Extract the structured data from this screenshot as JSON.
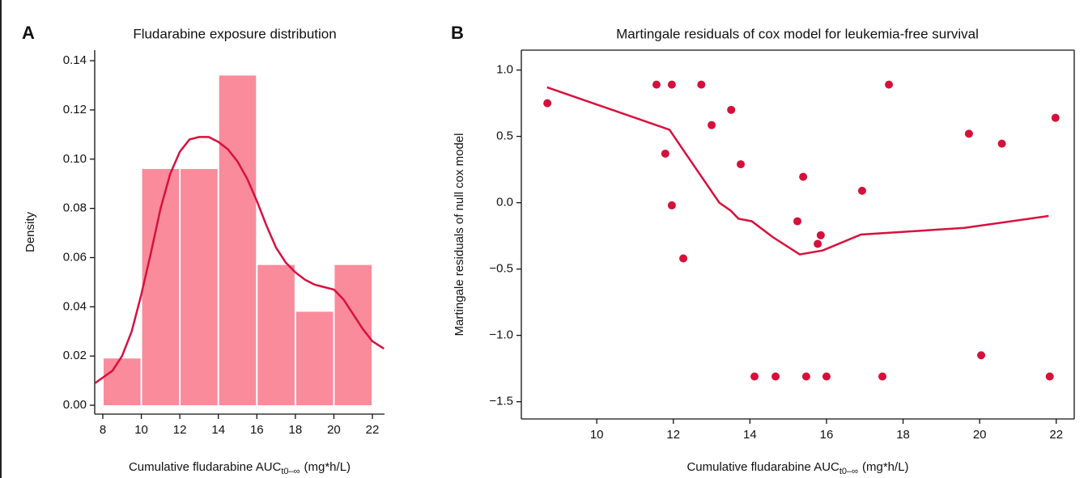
{
  "chart_data": [
    {
      "type": "histogram",
      "panel_label": "A",
      "title": "Fludarabine exposure distribution",
      "x_label": "Cumulative fludarabine AUC",
      "x_label_sub": "t0–∞",
      "x_label_unit": "(mg*h/L)",
      "y_label": "Density",
      "bins": [
        8,
        10,
        12,
        14,
        16,
        18,
        20,
        22
      ],
      "values": [
        0.019,
        0.096,
        0.096,
        0.134,
        0.057,
        0.038,
        0.057
      ],
      "color": "#f98b9b",
      "line_color": "#d8103e",
      "box": false,
      "curve_x": [
        7.6,
        8.5,
        9,
        9.5,
        10,
        10.5,
        11,
        11.5,
        12,
        12.5,
        13,
        13.5,
        14,
        14.5,
        15,
        15.5,
        16,
        16.5,
        17,
        17.5,
        18,
        18.5,
        19,
        19.5,
        20,
        20.5,
        21,
        21.5,
        22,
        22.6
      ],
      "curve_y": [
        0.009,
        0.014,
        0.02,
        0.03,
        0.045,
        0.062,
        0.08,
        0.094,
        0.103,
        0.108,
        0.109,
        0.109,
        0.107,
        0.104,
        0.099,
        0.092,
        0.083,
        0.073,
        0.064,
        0.058,
        0.054,
        0.051,
        0.049,
        0.048,
        0.047,
        0.043,
        0.037,
        0.031,
        0.026,
        0.023
      ],
      "xlim": [
        7.58,
        22.63
      ],
      "ylim": [
        -0.0036,
        0.1443
      ],
      "xticks": [
        8,
        10,
        12,
        14,
        16,
        18,
        20,
        22
      ],
      "yticks": [
        {
          "value": 0,
          "label": "0.00"
        },
        0.02,
        0.04,
        0.06,
        0.08,
        {
          "value": 0.1,
          "label": "0.10"
        },
        0.12,
        0.14
      ]
    },
    {
      "type": "scatter",
      "panel_label": "B",
      "title": "Martingale residuals of cox model for leukemia-free survival",
      "x_label": "Cumulative fludarabine AUC",
      "x_label_sub": "t0–∞",
      "x_label_unit": "(mg*h/L)",
      "y_label": "Martingale residuals of null cox model",
      "x": [
        8.71,
        11.56,
        11.96,
        11.79,
        11.96,
        12.26,
        12.73,
        13.0,
        13.51,
        13.76,
        14.12,
        14.67,
        15.24,
        15.39,
        15.47,
        15.77,
        15.85,
        16.0,
        16.93,
        17.46,
        17.63,
        19.72,
        20.04,
        20.58,
        21.83,
        21.98
      ],
      "values": [
        0.75,
        0.89,
        0.89,
        0.37,
        -0.02,
        -0.42,
        0.89,
        0.585,
        0.7,
        0.29,
        -1.31,
        -1.31,
        -0.14,
        0.195,
        -1.31,
        -0.31,
        -0.245,
        -1.31,
        0.09,
        -1.31,
        0.89,
        0.52,
        -1.15,
        0.445,
        -1.31,
        0.64
      ],
      "color": "#d5113b",
      "line_color": "#d8103e",
      "box": true,
      "curve_x": [
        8.7,
        11.9,
        12.3,
        13.2,
        13.5,
        13.7,
        14.05,
        14.6,
        15.3,
        15.9,
        16.9,
        19.6,
        21.8
      ],
      "curve_y": [
        0.87,
        0.55,
        0.38,
        0.0,
        -0.06,
        -0.12,
        -0.14,
        -0.26,
        -0.39,
        -0.36,
        -0.24,
        -0.19,
        -0.1
      ],
      "xlim": [
        8.03,
        22.47
      ],
      "ylim": [
        -1.63,
        1.15
      ],
      "xticks": [
        10,
        12,
        14,
        16,
        18,
        20,
        22
      ],
      "yticks": [
        {
          "value": -1.5,
          "label": "−1.5"
        },
        {
          "value": -1,
          "label": "−1.0"
        },
        {
          "value": -0.5,
          "label": "−0.5"
        },
        {
          "value": 0,
          "label": "0.0"
        },
        0.5,
        {
          "value": 1,
          "label": "1.0"
        }
      ]
    }
  ]
}
